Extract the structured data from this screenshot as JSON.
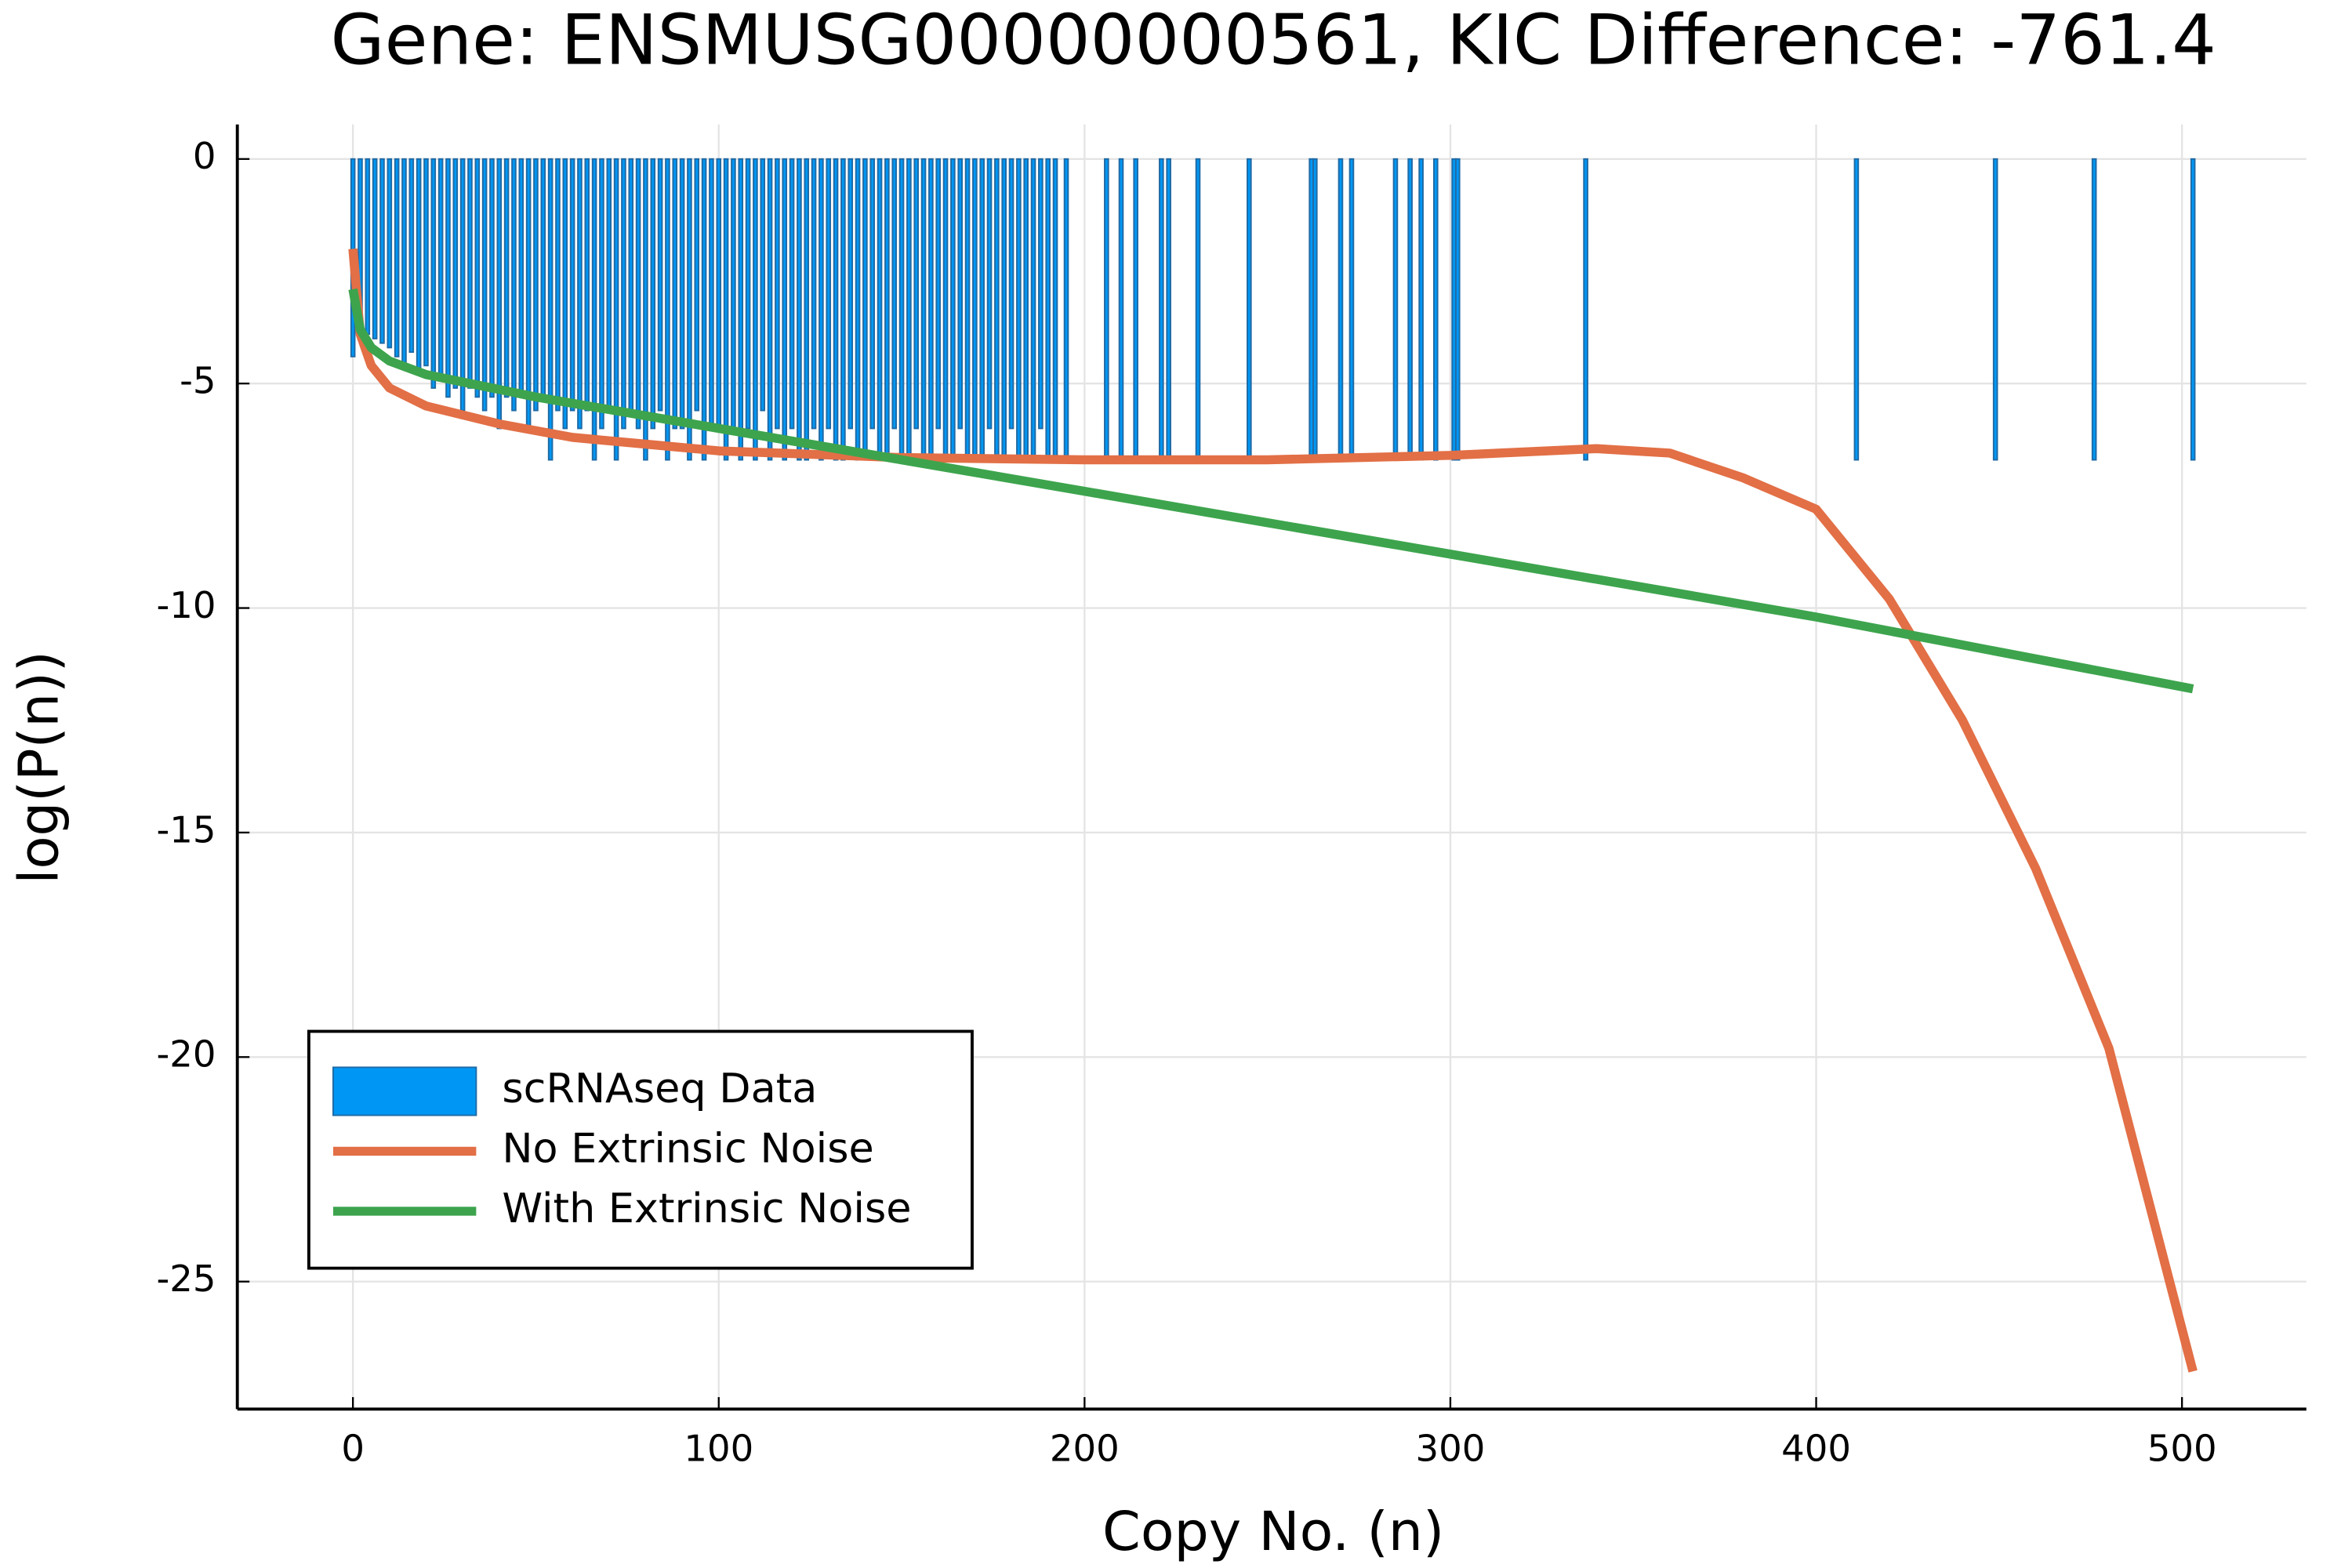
{
  "chart_data": {
    "type": "bar",
    "title": "Gene: ENSMUSG00000000561, KIC Difference: -761.4",
    "x_label": "Copy No. (n)",
    "y_label": "log(P(n))",
    "xlim": [
      -31.6,
      534
    ],
    "ylim": [
      0.77,
      -27.84
    ],
    "xticks": [
      0,
      100,
      200,
      300,
      400,
      500
    ],
    "yticks": [
      0,
      -5,
      -10,
      -15,
      -20,
      -25
    ],
    "grid": true,
    "legend": "bottom-left",
    "series": [
      {
        "name": "scRNAseq Data",
        "type": "bar",
        "color": "#0097f4",
        "edge_color": "#1f6aa5",
        "x": [
          0,
          2,
          4,
          6,
          8,
          10,
          12,
          14,
          16,
          18,
          20,
          22,
          24,
          26,
          28,
          30,
          32,
          34,
          36,
          38,
          40,
          42,
          44,
          46,
          48,
          50,
          52,
          54,
          56,
          58,
          60,
          62,
          64,
          66,
          68,
          70,
          72,
          74,
          76,
          78,
          80,
          82,
          84,
          86,
          88,
          90,
          92,
          94,
          96,
          98,
          100,
          102,
          104,
          106,
          108,
          110,
          112,
          114,
          116,
          118,
          120,
          122,
          124,
          126,
          128,
          130,
          132,
          134,
          136,
          138,
          140,
          142,
          144,
          146,
          148,
          150,
          152,
          154,
          156,
          158,
          160,
          162,
          164,
          166,
          168,
          170,
          172,
          174,
          176,
          178,
          180,
          182,
          184,
          186,
          188,
          190,
          192,
          195,
          206,
          210,
          214,
          221,
          223,
          231,
          245,
          262,
          263,
          270,
          273,
          285,
          289,
          292,
          296,
          301,
          302,
          337,
          411,
          449,
          476,
          503
        ],
        "values": [
          -4.4,
          -3.8,
          -3.9,
          -4.0,
          -4.1,
          -4.2,
          -4.4,
          -4.6,
          -4.3,
          -4.8,
          -4.6,
          -5.1,
          -4.9,
          -5.3,
          -5.1,
          -5.6,
          -5.1,
          -5.3,
          -5.6,
          -5.3,
          -6.0,
          -5.3,
          -5.6,
          -5.3,
          -6.0,
          -5.6,
          -5.3,
          -6.7,
          -5.6,
          -6.0,
          -5.6,
          -6.0,
          -5.6,
          -6.7,
          -6.0,
          -5.6,
          -6.7,
          -6.0,
          -5.6,
          -6.0,
          -6.7,
          -6.0,
          -5.6,
          -6.7,
          -6.0,
          -6.0,
          -6.7,
          -5.6,
          -6.7,
          -6.0,
          -6.0,
          -6.7,
          -6.0,
          -6.7,
          -6.0,
          -6.7,
          -5.6,
          -6.7,
          -6.0,
          -6.7,
          -6.0,
          -6.7,
          -6.7,
          -6.0,
          -6.7,
          -6.0,
          -6.7,
          -6.7,
          -6.0,
          -6.7,
          -6.7,
          -6.0,
          -6.7,
          -6.7,
          -6.0,
          -6.7,
          -6.7,
          -6.0,
          -6.7,
          -6.7,
          -6.0,
          -6.7,
          -6.7,
          -6.0,
          -6.7,
          -6.7,
          -6.7,
          -6.0,
          -6.7,
          -6.7,
          -6.0,
          -6.7,
          -6.7,
          -6.7,
          -6.0,
          -6.7,
          -6.7,
          -6.7,
          -6.7,
          -6.7,
          -6.7,
          -6.7,
          -6.7,
          -6.7,
          -6.7,
          -6.7,
          -6.7,
          -6.7,
          -6.7,
          -6.7,
          -6.7,
          -6.7,
          -6.7,
          -6.7,
          -6.7,
          -6.7,
          -6.7,
          -6.7,
          -6.7,
          -6.7
        ]
      },
      {
        "name": "No Extrinsic Noise",
        "type": "line",
        "color": "#e26f46",
        "x": [
          0,
          2,
          5,
          10,
          20,
          40,
          60,
          80,
          100,
          150,
          200,
          250,
          300,
          340,
          360,
          380,
          400,
          420,
          440,
          460,
          480,
          503
        ],
        "values": [
          -2,
          -3.9,
          -4.6,
          -5.1,
          -5.5,
          -5.9,
          -6.2,
          -6.35,
          -6.5,
          -6.65,
          -6.7,
          -6.7,
          -6.6,
          -6.45,
          -6.55,
          -7.1,
          -7.8,
          -9.8,
          -12.5,
          -15.8,
          -19.8,
          -27.0
        ]
      },
      {
        "name": "With Extrinsic Noise",
        "type": "line",
        "color": "#3da44d",
        "x": [
          0,
          2,
          5,
          10,
          20,
          50,
          100,
          150,
          200,
          300,
          400,
          503
        ],
        "values": [
          -2.9,
          -3.8,
          -4.2,
          -4.5,
          -4.8,
          -5.3,
          -6.0,
          -6.7,
          -7.4,
          -8.8,
          -10.2,
          -11.8
        ]
      }
    ]
  }
}
